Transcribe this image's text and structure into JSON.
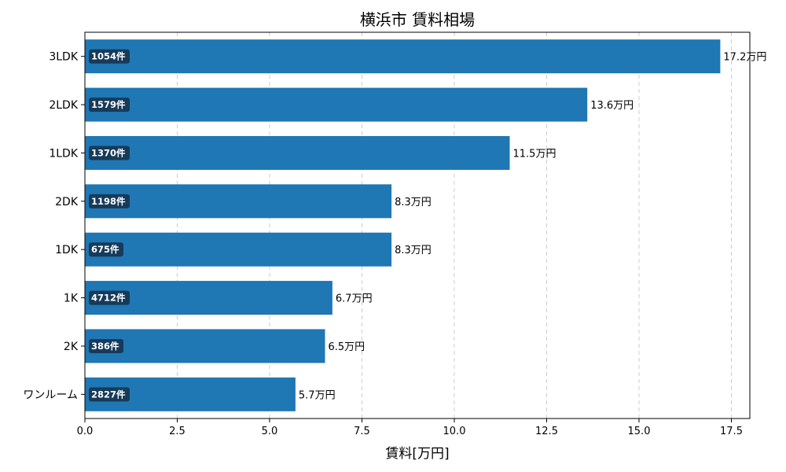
{
  "chart_data": {
    "type": "bar",
    "orientation": "horizontal",
    "title": "横浜市 賃料相場",
    "xlabel": "賃料[万円]",
    "ylabel": "",
    "xlim": [
      0,
      18
    ],
    "xticks": [
      "0.0",
      "2.5",
      "5.0",
      "7.5",
      "10.0",
      "12.5",
      "15.0",
      "17.5"
    ],
    "grid": "x-dashed",
    "categories": [
      "3LDK",
      "2LDK",
      "1LDK",
      "2DK",
      "1DK",
      "1K",
      "2K",
      "ワンルーム"
    ],
    "values": [
      17.2,
      13.6,
      11.5,
      8.3,
      8.3,
      6.7,
      6.5,
      5.7
    ],
    "value_labels": [
      "17.2万円",
      "13.6万円",
      "11.5万円",
      "8.3万円",
      "8.3万円",
      "6.7万円",
      "6.5万円",
      "5.7万円"
    ],
    "counts": [
      "1054件",
      "1579件",
      "1370件",
      "1198件",
      "675件",
      "4712件",
      "386件",
      "2827件"
    ],
    "colors": {
      "bar": "#1f77b4",
      "count_badge": "#163a5a",
      "grid": "#cccccc"
    }
  }
}
